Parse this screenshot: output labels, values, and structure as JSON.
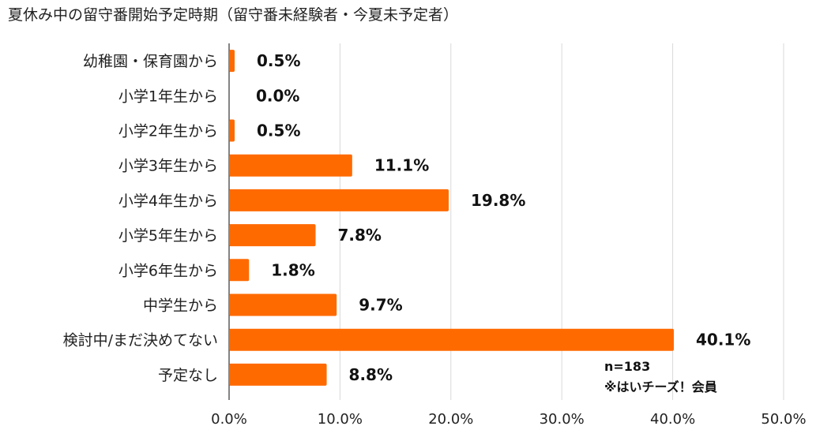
{
  "title": "夏休み中の留守番開始予定時期（留守番未経験者・今夏未予定者）",
  "note": {
    "n_label": "n=183",
    "source_label": "※はいチーズ！会員"
  },
  "colors": {
    "bar": "#ff6a00",
    "grid": "#d9d9d9",
    "axis": "#333333"
  },
  "chart_data": {
    "type": "bar",
    "orientation": "horizontal",
    "title": "夏休み中の留守番開始予定時期（留守番未経験者・今夏未予定者）",
    "categories": [
      "幼稚園・保育園から",
      "小学1年生から",
      "小学2年生から",
      "小学3年生から",
      "小学4年生から",
      "小学5年生から",
      "小学6年生から",
      "中学生から",
      "検討中/まだ決めてない",
      "予定なし"
    ],
    "values": [
      0.5,
      0.0,
      0.5,
      11.1,
      19.8,
      7.8,
      1.8,
      9.7,
      40.1,
      8.8
    ],
    "value_labels": [
      "0.5%",
      "0.0%",
      "0.5%",
      "11.1%",
      "19.8%",
      "7.8%",
      "1.8%",
      "9.7%",
      "40.1%",
      "8.8%"
    ],
    "xlim": [
      0,
      50
    ],
    "ticks": [
      0,
      10,
      20,
      30,
      40,
      50
    ],
    "tick_labels": [
      "0.0%",
      "10.0%",
      "20.0%",
      "30.0%",
      "40.0%",
      "50.0%"
    ],
    "grid": true,
    "xlabel": "",
    "ylabel": ""
  }
}
